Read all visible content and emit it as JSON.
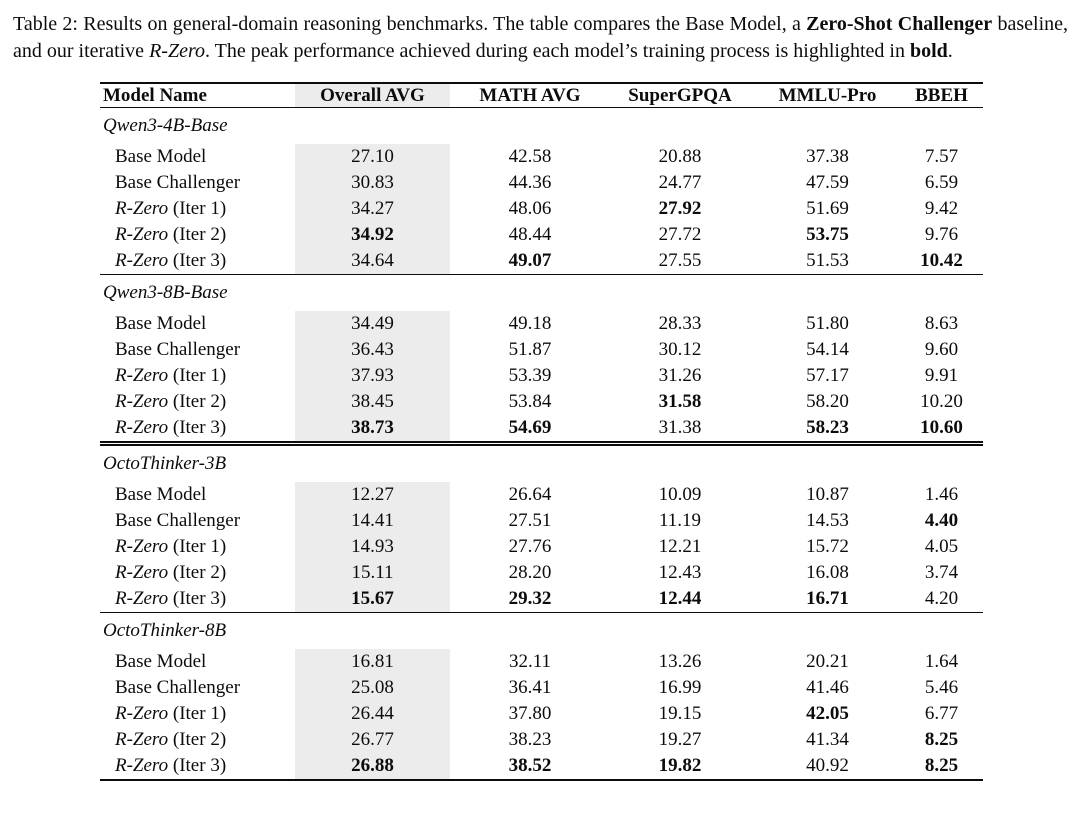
{
  "colors": {
    "highlight_column_bg": "#ececec",
    "rule": "#0c0c0c",
    "text": "#0c0c0c"
  },
  "caption": {
    "parts": [
      {
        "t": "Table 2: Results on general-domain reasoning benchmarks. The table compares the Base Model, a "
      },
      {
        "t": "Zero-Shot Challenger",
        "b": true
      },
      {
        "t": " baseline, and our iterative "
      },
      {
        "t": "R-Zero",
        "i": true
      },
      {
        "t": ". The peak performance achieved during each model’s training process is highlighted in "
      },
      {
        "t": "bold",
        "b": true
      },
      {
        "t": "."
      }
    ]
  },
  "table": {
    "columns": [
      {
        "label": "Model Name",
        "align": "left"
      },
      {
        "label": "Overall AVG",
        "highlight": true
      },
      {
        "label": "MATH AVG"
      },
      {
        "label": "SuperGPQA"
      },
      {
        "label": "MMLU-Pro"
      },
      {
        "label": "BBEH"
      }
    ],
    "sections": [
      {
        "name": "Qwen3-4B-Base",
        "rule_above": "none",
        "rows": [
          {
            "label": [
              {
                "t": "Base Model"
              }
            ],
            "cells": [
              {
                "v": "27.10"
              },
              {
                "v": "42.58"
              },
              {
                "v": "20.88"
              },
              {
                "v": "37.38"
              },
              {
                "v": "7.57"
              }
            ]
          },
          {
            "label": [
              {
                "t": "Base Challenger"
              }
            ],
            "cells": [
              {
                "v": "30.83"
              },
              {
                "v": "44.36"
              },
              {
                "v": "24.77"
              },
              {
                "v": "47.59"
              },
              {
                "v": "6.59"
              }
            ]
          },
          {
            "label": [
              {
                "t": "R-Zero",
                "i": true
              },
              {
                "t": " (Iter 1)"
              }
            ],
            "cells": [
              {
                "v": "34.27"
              },
              {
                "v": "48.06"
              },
              {
                "v": "27.92",
                "b": true
              },
              {
                "v": "51.69"
              },
              {
                "v": "9.42"
              }
            ]
          },
          {
            "label": [
              {
                "t": "R-Zero",
                "i": true
              },
              {
                "t": " (Iter 2)"
              }
            ],
            "cells": [
              {
                "v": "34.92",
                "b": true
              },
              {
                "v": "48.44"
              },
              {
                "v": "27.72"
              },
              {
                "v": "53.75",
                "b": true
              },
              {
                "v": "9.76"
              }
            ]
          },
          {
            "label": [
              {
                "t": "R-Zero",
                "i": true
              },
              {
                "t": " (Iter 3)"
              }
            ],
            "cells": [
              {
                "v": "34.64"
              },
              {
                "v": "49.07",
                "b": true
              },
              {
                "v": "27.55"
              },
              {
                "v": "51.53"
              },
              {
                "v": "10.42",
                "b": true
              }
            ]
          }
        ]
      },
      {
        "name": "Qwen3-8B-Base",
        "rule_above": "single",
        "rows": [
          {
            "label": [
              {
                "t": "Base Model"
              }
            ],
            "cells": [
              {
                "v": "34.49"
              },
              {
                "v": "49.18"
              },
              {
                "v": "28.33"
              },
              {
                "v": "51.80"
              },
              {
                "v": "8.63"
              }
            ]
          },
          {
            "label": [
              {
                "t": "Base Challenger"
              }
            ],
            "cells": [
              {
                "v": "36.43"
              },
              {
                "v": "51.87"
              },
              {
                "v": "30.12"
              },
              {
                "v": "54.14"
              },
              {
                "v": "9.60"
              }
            ]
          },
          {
            "label": [
              {
                "t": "R-Zero",
                "i": true
              },
              {
                "t": " (Iter 1)"
              }
            ],
            "cells": [
              {
                "v": "37.93"
              },
              {
                "v": "53.39"
              },
              {
                "v": "31.26"
              },
              {
                "v": "57.17"
              },
              {
                "v": "9.91"
              }
            ]
          },
          {
            "label": [
              {
                "t": "R-Zero",
                "i": true
              },
              {
                "t": " (Iter 2)"
              }
            ],
            "cells": [
              {
                "v": "38.45"
              },
              {
                "v": "53.84"
              },
              {
                "v": "31.58",
                "b": true
              },
              {
                "v": "58.20"
              },
              {
                "v": "10.20"
              }
            ]
          },
          {
            "label": [
              {
                "t": "R-Zero",
                "i": true
              },
              {
                "t": " (Iter 3)"
              }
            ],
            "cells": [
              {
                "v": "38.73",
                "b": true
              },
              {
                "v": "54.69",
                "b": true
              },
              {
                "v": "31.38"
              },
              {
                "v": "58.23",
                "b": true
              },
              {
                "v": "10.60",
                "b": true
              }
            ]
          }
        ]
      },
      {
        "name": "OctoThinker-3B",
        "rule_above": "double",
        "rows": [
          {
            "label": [
              {
                "t": "Base Model"
              }
            ],
            "cells": [
              {
                "v": "12.27"
              },
              {
                "v": "26.64"
              },
              {
                "v": "10.09"
              },
              {
                "v": "10.87"
              },
              {
                "v": "1.46"
              }
            ]
          },
          {
            "label": [
              {
                "t": "Base Challenger"
              }
            ],
            "cells": [
              {
                "v": "14.41"
              },
              {
                "v": "27.51"
              },
              {
                "v": "11.19"
              },
              {
                "v": "14.53"
              },
              {
                "v": "4.40",
                "b": true
              }
            ]
          },
          {
            "label": [
              {
                "t": "R-Zero",
                "i": true
              },
              {
                "t": " (Iter 1)"
              }
            ],
            "cells": [
              {
                "v": "14.93"
              },
              {
                "v": "27.76"
              },
              {
                "v": "12.21"
              },
              {
                "v": "15.72"
              },
              {
                "v": "4.05"
              }
            ]
          },
          {
            "label": [
              {
                "t": "R-Zero",
                "i": true
              },
              {
                "t": " (Iter 2)"
              }
            ],
            "cells": [
              {
                "v": "15.11"
              },
              {
                "v": "28.20"
              },
              {
                "v": "12.43"
              },
              {
                "v": "16.08"
              },
              {
                "v": "3.74"
              }
            ]
          },
          {
            "label": [
              {
                "t": "R-Zero",
                "i": true
              },
              {
                "t": " (Iter 3)"
              }
            ],
            "cells": [
              {
                "v": "15.67",
                "b": true
              },
              {
                "v": "29.32",
                "b": true
              },
              {
                "v": "12.44",
                "b": true
              },
              {
                "v": "16.71",
                "b": true
              },
              {
                "v": "4.20"
              }
            ]
          }
        ]
      },
      {
        "name": "OctoThinker-8B",
        "rule_above": "single",
        "rows": [
          {
            "label": [
              {
                "t": "Base Model"
              }
            ],
            "cells": [
              {
                "v": "16.81"
              },
              {
                "v": "32.11"
              },
              {
                "v": "13.26"
              },
              {
                "v": "20.21"
              },
              {
                "v": "1.64"
              }
            ]
          },
          {
            "label": [
              {
                "t": "Base Challenger"
              }
            ],
            "cells": [
              {
                "v": "25.08"
              },
              {
                "v": "36.41"
              },
              {
                "v": "16.99"
              },
              {
                "v": "41.46"
              },
              {
                "v": "5.46"
              }
            ]
          },
          {
            "label": [
              {
                "t": "R-Zero",
                "i": true
              },
              {
                "t": " (Iter 1)"
              }
            ],
            "cells": [
              {
                "v": "26.44"
              },
              {
                "v": "37.80"
              },
              {
                "v": "19.15"
              },
              {
                "v": "42.05",
                "b": true
              },
              {
                "v": "6.77"
              }
            ]
          },
          {
            "label": [
              {
                "t": "R-Zero",
                "i": true
              },
              {
                "t": " (Iter 2)"
              }
            ],
            "cells": [
              {
                "v": "26.77"
              },
              {
                "v": "38.23"
              },
              {
                "v": "19.27"
              },
              {
                "v": "41.34"
              },
              {
                "v": "8.25",
                "b": true
              }
            ]
          },
          {
            "label": [
              {
                "t": "R-Zero",
                "i": true
              },
              {
                "t": " (Iter 3)"
              }
            ],
            "cells": [
              {
                "v": "26.88",
                "b": true
              },
              {
                "v": "38.52",
                "b": true
              },
              {
                "v": "19.82",
                "b": true
              },
              {
                "v": "40.92"
              },
              {
                "v": "8.25",
                "b": true
              }
            ]
          }
        ]
      }
    ]
  }
}
